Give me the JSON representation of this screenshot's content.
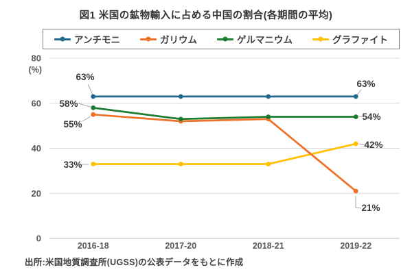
{
  "source": "出所:米国地質調査所(UGSS)の公表データをもとに作成",
  "chart_data": {
    "type": "line",
    "title": "図1 米国の鉱物輸入に占める中国の割合(各期間の平均)",
    "categories": [
      "2016-18",
      "2017-20",
      "2018-21",
      "2019-22"
    ],
    "series": [
      {
        "name": "アンチモニ",
        "color": "#20698C",
        "values": [
          63,
          63,
          63,
          63
        ]
      },
      {
        "name": "ガリウム",
        "color": "#ED7128",
        "values": [
          55,
          52,
          53,
          21
        ]
      },
      {
        "name": "ゲルマニウム",
        "color": "#1E7D33",
        "values": [
          58,
          53,
          54,
          54
        ]
      },
      {
        "name": "グラファイト",
        "color": "#FFC000",
        "values": [
          33,
          33,
          33,
          42
        ]
      }
    ],
    "xlabel": "",
    "ylabel": "(%)",
    "ylim": [
      0,
      80
    ],
    "yticks": [
      0,
      20,
      40,
      60,
      80
    ],
    "grid": true,
    "legend_position": "top",
    "gridline_color": "#d9d9d9",
    "axis_label_color": "#595959",
    "data_label_color": "#3a3a3a",
    "annotations": [
      {
        "series": 0,
        "point": 0,
        "text": "63%"
      },
      {
        "series": 0,
        "point": 3,
        "text": "63%"
      },
      {
        "series": 1,
        "point": 0,
        "text": "55%"
      },
      {
        "series": 1,
        "point": 3,
        "text": "21%"
      },
      {
        "series": 2,
        "point": 0,
        "text": "58%"
      },
      {
        "series": 2,
        "point": 3,
        "text": "54%"
      },
      {
        "series": 3,
        "point": 0,
        "text": "33%"
      },
      {
        "series": 3,
        "point": 3,
        "text": "42%"
      }
    ]
  }
}
